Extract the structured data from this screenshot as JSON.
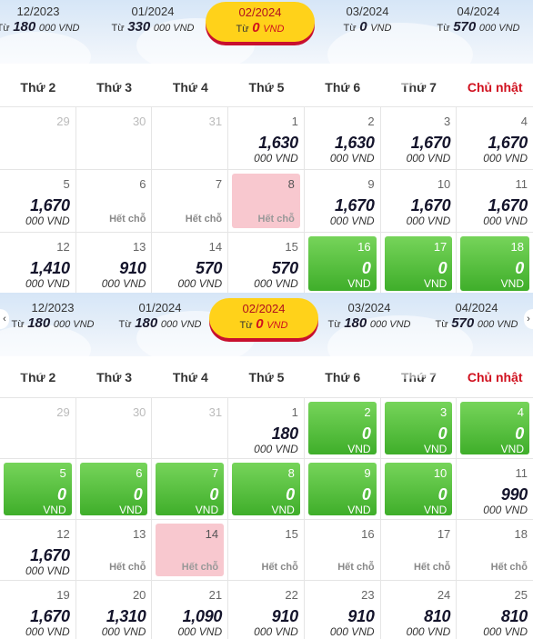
{
  "calendar1": {
    "months": [
      {
        "label": "12/2023",
        "from": "Từ",
        "price": "180",
        "unit": "000 VND",
        "selected": false
      },
      {
        "label": "01/2024",
        "from": "Từ",
        "price": "330",
        "unit": "000 VND",
        "selected": false
      },
      {
        "label": "02/2024",
        "from": "Từ",
        "price": "0",
        "unit": "VND",
        "selected": true
      },
      {
        "label": "03/2024",
        "from": "Từ",
        "price": "0",
        "unit": "VND",
        "selected": false
      },
      {
        "label": "04/2024",
        "from": "Từ",
        "price": "570",
        "unit": "000 VND",
        "selected": false
      }
    ],
    "weekdays": [
      "Thứ 2",
      "Thứ 3",
      "Thứ 4",
      "Thứ 5",
      "Thứ 6",
      "Thứ 7",
      "Chủ nhật"
    ],
    "days": [
      {
        "day": "29",
        "type": "past"
      },
      {
        "day": "30",
        "type": "past"
      },
      {
        "day": "31",
        "type": "past"
      },
      {
        "day": "1",
        "type": "normal",
        "price": "1,630",
        "unit": "000 VND"
      },
      {
        "day": "2",
        "type": "normal",
        "price": "1,630",
        "unit": "000 VND"
      },
      {
        "day": "3",
        "type": "normal",
        "price": "1,670",
        "unit": "000 VND"
      },
      {
        "day": "4",
        "type": "normal",
        "price": "1,670",
        "unit": "000 VND"
      },
      {
        "day": "5",
        "type": "normal",
        "price": "1,670",
        "unit": "000 VND"
      },
      {
        "day": "6",
        "type": "soldout",
        "text": "Hết chỗ"
      },
      {
        "day": "7",
        "type": "soldout",
        "text": "Hết chỗ"
      },
      {
        "day": "8",
        "type": "pink",
        "text": "Hết chỗ"
      },
      {
        "day": "9",
        "type": "normal",
        "price": "1,670",
        "unit": "000 VND"
      },
      {
        "day": "10",
        "type": "normal",
        "price": "1,670",
        "unit": "000 VND"
      },
      {
        "day": "11",
        "type": "normal",
        "price": "1,670",
        "unit": "000 VND"
      },
      {
        "day": "12",
        "type": "normal",
        "price": "1,410",
        "unit": "000 VND"
      },
      {
        "day": "13",
        "type": "normal",
        "price": "910",
        "unit": "000 VND"
      },
      {
        "day": "14",
        "type": "normal",
        "price": "570",
        "unit": "000 VND"
      },
      {
        "day": "15",
        "type": "normal",
        "price": "570",
        "unit": "000 VND"
      },
      {
        "day": "16",
        "type": "green",
        "price": "0",
        "unit": "VND"
      },
      {
        "day": "17",
        "type": "green",
        "price": "0",
        "unit": "VND"
      },
      {
        "day": "18",
        "type": "green",
        "price": "0",
        "unit": "VND"
      }
    ]
  },
  "calendar2": {
    "months": [
      {
        "label": "12/2023",
        "from": "Từ",
        "price": "180",
        "unit": "000 VND",
        "selected": false
      },
      {
        "label": "01/2024",
        "from": "Từ",
        "price": "180",
        "unit": "000 VND",
        "selected": false
      },
      {
        "label": "02/2024",
        "from": "Từ",
        "price": "0",
        "unit": "VND",
        "selected": true
      },
      {
        "label": "03/2024",
        "from": "Từ",
        "price": "180",
        "unit": "000 VND",
        "selected": false
      },
      {
        "label": "04/2024",
        "from": "Từ",
        "price": "570",
        "unit": "000 VND",
        "selected": false
      }
    ],
    "weekdays": [
      "Thứ 2",
      "Thứ 3",
      "Thứ 4",
      "Thứ 5",
      "Thứ 6",
      "Thứ 7",
      "Chủ nhật"
    ],
    "days": [
      {
        "day": "29",
        "type": "past"
      },
      {
        "day": "30",
        "type": "past"
      },
      {
        "day": "31",
        "type": "past"
      },
      {
        "day": "1",
        "type": "normal",
        "price": "180",
        "unit": "000 VND"
      },
      {
        "day": "2",
        "type": "green",
        "price": "0",
        "unit": "VND"
      },
      {
        "day": "3",
        "type": "green",
        "price": "0",
        "unit": "VND"
      },
      {
        "day": "4",
        "type": "green",
        "price": "0",
        "unit": "VND"
      },
      {
        "day": "5",
        "type": "green",
        "price": "0",
        "unit": "VND"
      },
      {
        "day": "6",
        "type": "green",
        "price": "0",
        "unit": "VND"
      },
      {
        "day": "7",
        "type": "green",
        "price": "0",
        "unit": "VND"
      },
      {
        "day": "8",
        "type": "green",
        "price": "0",
        "unit": "VND"
      },
      {
        "day": "9",
        "type": "green",
        "price": "0",
        "unit": "VND"
      },
      {
        "day": "10",
        "type": "green",
        "price": "0",
        "unit": "VND"
      },
      {
        "day": "11",
        "type": "normal",
        "price": "990",
        "unit": "000 VND"
      },
      {
        "day": "12",
        "type": "normal",
        "price": "1,670",
        "unit": "000 VND"
      },
      {
        "day": "13",
        "type": "soldout",
        "text": "Hết chỗ"
      },
      {
        "day": "14",
        "type": "pink",
        "text": "Hết chỗ"
      },
      {
        "day": "15",
        "type": "soldout",
        "text": "Hết chỗ"
      },
      {
        "day": "16",
        "type": "soldout",
        "text": "Hết chỗ"
      },
      {
        "day": "17",
        "type": "soldout",
        "text": "Hết chỗ"
      },
      {
        "day": "18",
        "type": "soldout",
        "text": "Hết chỗ"
      },
      {
        "day": "19",
        "type": "normal",
        "price": "1,670",
        "unit": "000 VND"
      },
      {
        "day": "20",
        "type": "normal",
        "price": "1,310",
        "unit": "000 VND"
      },
      {
        "day": "21",
        "type": "normal",
        "price": "1,090",
        "unit": "000 VND"
      },
      {
        "day": "22",
        "type": "normal",
        "price": "910",
        "unit": "000 VND"
      },
      {
        "day": "23",
        "type": "normal",
        "price": "910",
        "unit": "000 VND"
      },
      {
        "day": "24",
        "type": "normal",
        "price": "810",
        "unit": "000 VND"
      },
      {
        "day": "25",
        "type": "normal",
        "price": "810",
        "unit": "000 VND"
      }
    ]
  },
  "icons": {
    "prev": "chevron-left-icon",
    "next": "chevron-right-icon"
  },
  "colors": {
    "green": "#3fae2a",
    "pink": "#f8c8cf",
    "badge": "#ffd21a",
    "sunday": "#d0101e"
  }
}
